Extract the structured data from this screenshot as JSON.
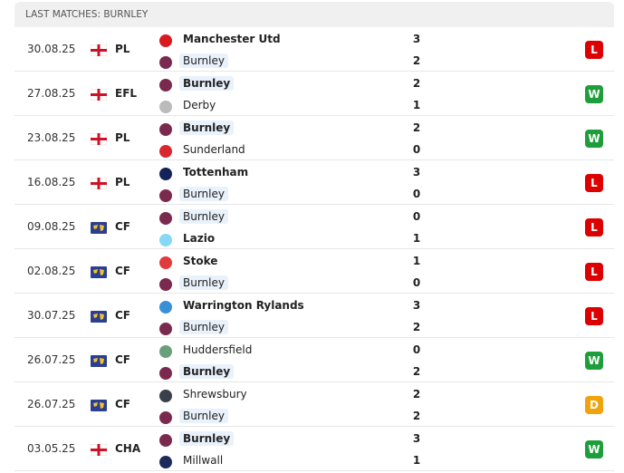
{
  "header": {
    "title": "LAST MATCHES: BURNLEY"
  },
  "matches": [
    {
      "date": "30.08.25",
      "competition": "PL",
      "flag": "england",
      "home": {
        "name": "Manchester Utd",
        "score": 3,
        "highlight": false,
        "logo_color": "#d81920"
      },
      "away": {
        "name": "Burnley",
        "score": 2,
        "highlight": true,
        "logo_color": "#7a2a4e"
      },
      "result": "L",
      "result_color": "#dc0000"
    },
    {
      "date": "27.08.25",
      "competition": "EFL",
      "flag": "england",
      "home": {
        "name": "Burnley",
        "score": 2,
        "highlight": true,
        "logo_color": "#7a2a4e"
      },
      "away": {
        "name": "Derby",
        "score": 1,
        "highlight": false,
        "logo_color": "#bbbbbb"
      },
      "result": "W",
      "result_color": "#1e9e3a"
    },
    {
      "date": "23.08.25",
      "competition": "PL",
      "flag": "england",
      "home": {
        "name": "Burnley",
        "score": 2,
        "highlight": true,
        "logo_color": "#7a2a4e"
      },
      "away": {
        "name": "Sunderland",
        "score": 0,
        "highlight": false,
        "logo_color": "#d8262e"
      },
      "result": "W",
      "result_color": "#1e9e3a"
    },
    {
      "date": "16.08.25",
      "competition": "PL",
      "flag": "england",
      "home": {
        "name": "Tottenham",
        "score": 3,
        "highlight": false,
        "logo_color": "#132257"
      },
      "away": {
        "name": "Burnley",
        "score": 0,
        "highlight": true,
        "logo_color": "#7a2a4e"
      },
      "result": "L",
      "result_color": "#dc0000"
    },
    {
      "date": "09.08.25",
      "competition": "CF",
      "flag": "world",
      "home": {
        "name": "Burnley",
        "score": 0,
        "highlight": true,
        "logo_color": "#7a2a4e"
      },
      "away": {
        "name": "Lazio",
        "score": 1,
        "highlight": false,
        "logo_color": "#87d8f7"
      },
      "result": "L",
      "result_color": "#dc0000"
    },
    {
      "date": "02.08.25",
      "competition": "CF",
      "flag": "world",
      "home": {
        "name": "Stoke",
        "score": 1,
        "highlight": false,
        "logo_color": "#e03a3e"
      },
      "away": {
        "name": "Burnley",
        "score": 0,
        "highlight": true,
        "logo_color": "#7a2a4e"
      },
      "result": "L",
      "result_color": "#dc0000"
    },
    {
      "date": "30.07.25",
      "competition": "CF",
      "flag": "world",
      "home": {
        "name": "Warrington Rylands",
        "score": 3,
        "highlight": false,
        "logo_color": "#3b8fd6"
      },
      "away": {
        "name": "Burnley",
        "score": 2,
        "highlight": true,
        "logo_color": "#7a2a4e"
      },
      "result": "L",
      "result_color": "#dc0000"
    },
    {
      "date": "26.07.25",
      "competition": "CF",
      "flag": "world",
      "home": {
        "name": "Huddersfield",
        "score": 0,
        "highlight": false,
        "logo_color": "#6b9e7a"
      },
      "away": {
        "name": "Burnley",
        "score": 2,
        "highlight": true,
        "logo_color": "#7a2a4e"
      },
      "result": "W",
      "result_color": "#1e9e3a"
    },
    {
      "date": "26.07.25",
      "competition": "CF",
      "flag": "world",
      "home": {
        "name": "Shrewsbury",
        "score": 2,
        "highlight": false,
        "logo_color": "#3a3f4a"
      },
      "away": {
        "name": "Burnley",
        "score": 2,
        "highlight": true,
        "logo_color": "#7a2a4e"
      },
      "result": "D",
      "result_color": "#f0a30a"
    },
    {
      "date": "03.05.25",
      "competition": "CHA",
      "flag": "england",
      "home": {
        "name": "Burnley",
        "score": 3,
        "highlight": true,
        "logo_color": "#7a2a4e"
      },
      "away": {
        "name": "Millwall",
        "score": 1,
        "highlight": false,
        "logo_color": "#1d2a5b"
      },
      "result": "W",
      "result_color": "#1e9e3a"
    }
  ]
}
